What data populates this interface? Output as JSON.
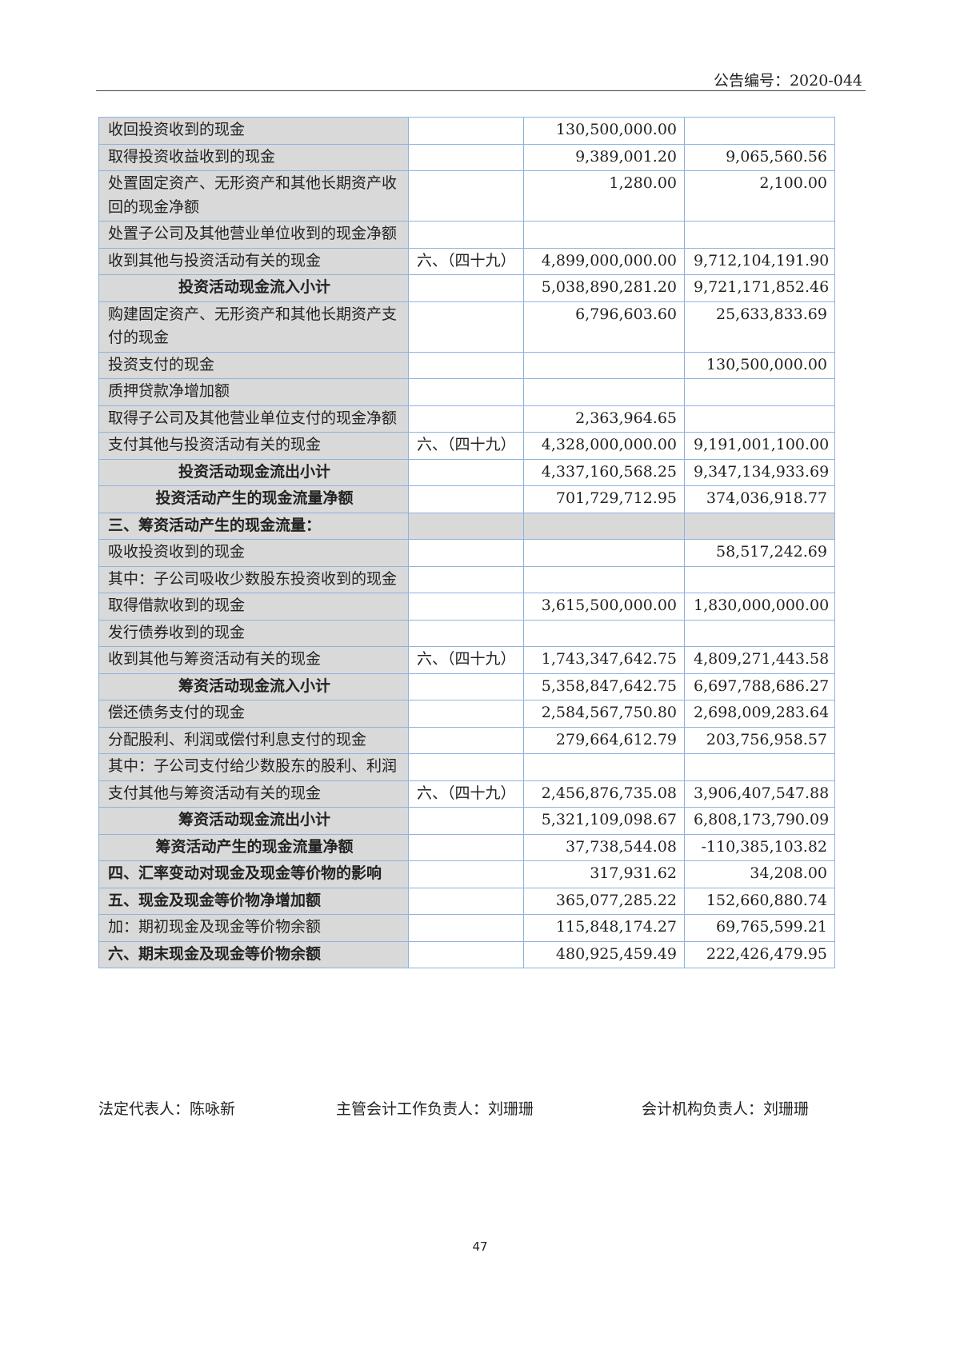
{
  "header": {
    "announcement_no": "公告编号：2020-044"
  },
  "table": {
    "rows": [
      {
        "label": "收回投资收到的现金",
        "note": "",
        "current": "130,500,000.00",
        "prior": "",
        "style": ""
      },
      {
        "label": "取得投资收益收到的现金",
        "note": "",
        "current": "9,389,001.20",
        "prior": "9,065,560.56",
        "style": ""
      },
      {
        "label": "处置固定资产、无形资产和其他长期资产收回的现金净额",
        "note": "",
        "current": "1,280.00",
        "prior": "2,100.00",
        "style": ""
      },
      {
        "label": "处置子公司及其他营业单位收到的现金净额",
        "note": "",
        "current": "",
        "prior": "",
        "style": ""
      },
      {
        "label": "收到其他与投资活动有关的现金",
        "note": "六、（四十九）",
        "current": "4,899,000,000.00",
        "prior": "9,712,104,191.90",
        "style": ""
      },
      {
        "label": "投资活动现金流入小计",
        "note": "",
        "current": "5,038,890,281.20",
        "prior": "9,721,171,852.46",
        "style": "sub"
      },
      {
        "label": "购建固定资产、无形资产和其他长期资产支付的现金",
        "note": "",
        "current": "6,796,603.60",
        "prior": "25,633,833.69",
        "style": ""
      },
      {
        "label": "投资支付的现金",
        "note": "",
        "current": "",
        "prior": "130,500,000.00",
        "style": ""
      },
      {
        "label": "质押贷款净增加额",
        "note": "",
        "current": "",
        "prior": "",
        "style": ""
      },
      {
        "label": "取得子公司及其他营业单位支付的现金净额",
        "note": "",
        "current": "2,363,964.65",
        "prior": "",
        "style": ""
      },
      {
        "label": "支付其他与投资活动有关的现金",
        "note": "六、（四十九）",
        "current": "4,328,000,000.00",
        "prior": "9,191,001,100.00",
        "style": ""
      },
      {
        "label": "投资活动现金流出小计",
        "note": "",
        "current": "4,337,160,568.25",
        "prior": "9,347,134,933.69",
        "style": "sub"
      },
      {
        "label": "投资活动产生的现金流量净额",
        "note": "",
        "current": "701,729,712.95",
        "prior": "374,036,918.77",
        "style": "sub"
      },
      {
        "label": "三、筹资活动产生的现金流量：",
        "note": "",
        "current": "",
        "prior": "",
        "style": "bold section"
      },
      {
        "label": "吸收投资收到的现金",
        "note": "",
        "current": "",
        "prior": "58,517,242.69",
        "style": ""
      },
      {
        "label": "其中：子公司吸收少数股东投资收到的现金",
        "note": "",
        "current": "",
        "prior": "",
        "style": ""
      },
      {
        "label": "取得借款收到的现金",
        "note": "",
        "current": "3,615,500,000.00",
        "prior": "1,830,000,000.00",
        "style": ""
      },
      {
        "label": "发行债券收到的现金",
        "note": "",
        "current": "",
        "prior": "",
        "style": ""
      },
      {
        "label": "收到其他与筹资活动有关的现金",
        "note": "六、（四十九）",
        "current": "1,743,347,642.75",
        "prior": "4,809,271,443.58",
        "style": ""
      },
      {
        "label": "筹资活动现金流入小计",
        "note": "",
        "current": "5,358,847,642.75",
        "prior": "6,697,788,686.27",
        "style": "sub"
      },
      {
        "label": "偿还债务支付的现金",
        "note": "",
        "current": "2,584,567,750.80",
        "prior": "2,698,009,283.64",
        "style": ""
      },
      {
        "label": "分配股利、利润或偿付利息支付的现金",
        "note": "",
        "current": "279,664,612.79",
        "prior": "203,756,958.57",
        "style": ""
      },
      {
        "label": "其中：子公司支付给少数股东的股利、利润",
        "note": "",
        "current": "",
        "prior": "",
        "style": ""
      },
      {
        "label": "支付其他与筹资活动有关的现金",
        "note": "六、（四十九）",
        "current": "2,456,876,735.08",
        "prior": "3,906,407,547.88",
        "style": ""
      },
      {
        "label": "筹资活动现金流出小计",
        "note": "",
        "current": "5,321,109,098.67",
        "prior": "6,808,173,790.09",
        "style": "sub"
      },
      {
        "label": "筹资活动产生的现金流量净额",
        "note": "",
        "current": "37,738,544.08",
        "prior": "-110,385,103.82",
        "style": "sub"
      },
      {
        "label": "四、汇率变动对现金及现金等价物的影响",
        "note": "",
        "current": "317,931.62",
        "prior": "34,208.00",
        "style": "bold"
      },
      {
        "label": "五、现金及现金等价物净增加额",
        "note": "",
        "current": "365,077,285.22",
        "prior": "152,660,880.74",
        "style": "bold"
      },
      {
        "label": "加：期初现金及现金等价物余额",
        "note": "",
        "current": "115,848,174.27",
        "prior": "69,765,599.21",
        "style": ""
      },
      {
        "label": "六、期末现金及现金等价物余额",
        "note": "",
        "current": "480,925,459.49",
        "prior": "222,426,479.95",
        "style": "bold"
      }
    ]
  },
  "signatures": {
    "legal_rep": "法定代表人：陈咏新",
    "accounting_head": "主管会计工作负责人：刘珊珊",
    "dept_head": "会计机构负责人：刘珊珊"
  },
  "page_number": "47"
}
